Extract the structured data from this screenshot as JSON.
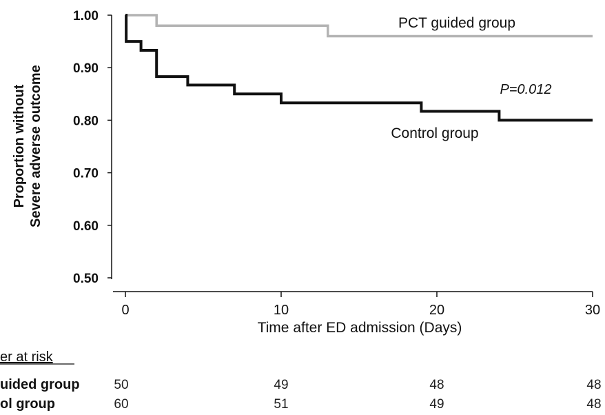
{
  "chart_data": {
    "type": "line",
    "step": true,
    "xlabel": "Time after ED admission (Days)",
    "ylabel_line1": "Proportion without",
    "ylabel_line2": "Severe adverse outcome",
    "xlim": [
      0,
      30
    ],
    "ylim": [
      0.5,
      1.0
    ],
    "x_ticks": [
      "0",
      "10",
      "20",
      "30"
    ],
    "y_ticks": [
      "1.00",
      "0.90",
      "0.80",
      "0.70",
      "0.60",
      "0.50"
    ],
    "grid": false,
    "annotation": "P=0.012",
    "series": [
      {
        "name": "PCT guided group",
        "color": "#b3b3b3",
        "points": [
          [
            0,
            1.0
          ],
          [
            2,
            0.98
          ],
          [
            13,
            0.96
          ],
          [
            30,
            0.96
          ]
        ]
      },
      {
        "name": "Control group",
        "color": "#111111",
        "points": [
          [
            0,
            1.0
          ],
          [
            0.05,
            0.95
          ],
          [
            1,
            0.933
          ],
          [
            2,
            0.883
          ],
          [
            4,
            0.867
          ],
          [
            7,
            0.85
          ],
          [
            10,
            0.833
          ],
          [
            19,
            0.817
          ],
          [
            24,
            0.8
          ],
          [
            30,
            0.8
          ]
        ]
      }
    ]
  },
  "risk_table": {
    "title": "er at risk",
    "timepoints": [
      0,
      10,
      20,
      30
    ],
    "rows": [
      {
        "label": "uided group",
        "values": [
          "50",
          "49",
          "48",
          "48"
        ]
      },
      {
        "label": "ol group",
        "values": [
          "60",
          "51",
          "49",
          "48"
        ]
      }
    ]
  }
}
